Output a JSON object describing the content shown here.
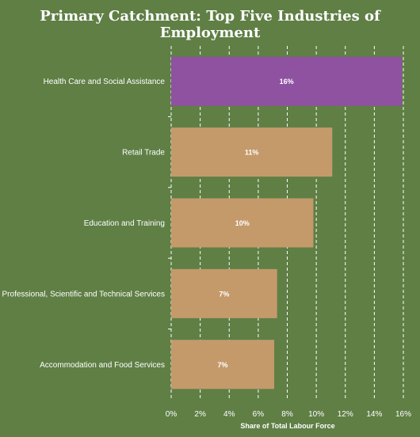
{
  "chart_data": {
    "type": "bar",
    "orientation": "horizontal",
    "title": "Primary Catchment: Top Five Industries of Employment",
    "xlabel": "Share of Total Labour Force",
    "ylabel": "",
    "categories": [
      "Health Care and Social Assistance",
      "Retail Trade",
      "Education and Training",
      "Professional, Scientific and Technical Services",
      "Accommodation and Food Services"
    ],
    "values": [
      15.9,
      11.1,
      9.8,
      7.3,
      7.1
    ],
    "data_labels": [
      "16%",
      "11%",
      "10%",
      "7%",
      "7%"
    ],
    "xlim": [
      0,
      16
    ],
    "x_ticks": [
      "0%",
      "2%",
      "4%",
      "6%",
      "8%",
      "10%",
      "12%",
      "14%",
      "16%"
    ],
    "grid": "vertical dashed",
    "legend": "none",
    "colors": {
      "background": "#5f7f45",
      "highlight_bar": "#8e52a1",
      "bar": "#c49a6b",
      "text": "#ffffff",
      "grid": "#ffffff"
    }
  }
}
